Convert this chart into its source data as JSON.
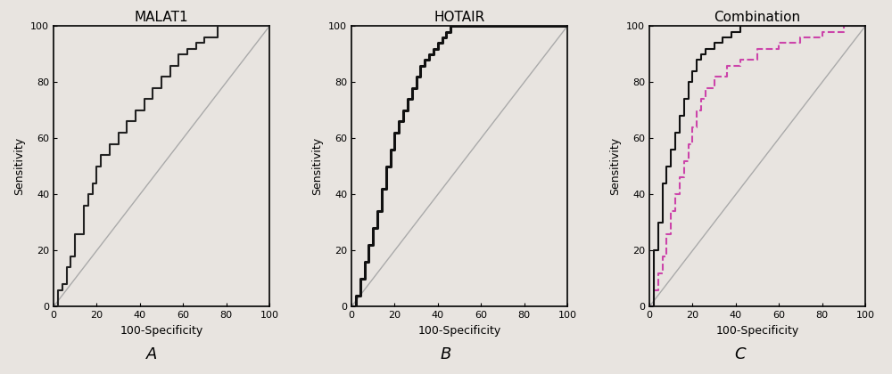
{
  "fig_width": 10.0,
  "fig_height": 4.2,
  "bg_color": "#e8e4e0",
  "panels": [
    {
      "title": "MALAT1",
      "xlabel": "100-Specificity",
      "ylabel": "Sensitivity",
      "xlim": [
        0,
        100
      ],
      "ylim": [
        0,
        100
      ],
      "xticks": [
        0,
        20,
        40,
        60,
        80,
        100
      ],
      "yticks": [
        0,
        20,
        40,
        60,
        80,
        100
      ],
      "label": "A",
      "curves": [
        {
          "x": [
            0,
            2,
            2,
            4,
            4,
            6,
            6,
            8,
            8,
            10,
            10,
            14,
            14,
            16,
            16,
            18,
            18,
            20,
            20,
            22,
            22,
            26,
            26,
            30,
            30,
            34,
            34,
            38,
            38,
            42,
            42,
            46,
            46,
            50,
            50,
            54,
            54,
            58,
            58,
            62,
            62,
            66,
            66,
            70,
            70,
            76,
            76,
            82,
            82,
            100
          ],
          "y": [
            0,
            0,
            6,
            6,
            8,
            8,
            14,
            14,
            18,
            18,
            26,
            26,
            36,
            36,
            40,
            40,
            44,
            44,
            50,
            50,
            54,
            54,
            58,
            58,
            62,
            62,
            66,
            66,
            70,
            70,
            74,
            74,
            78,
            78,
            82,
            82,
            86,
            86,
            90,
            90,
            92,
            92,
            94,
            94,
            96,
            96,
            100,
            100,
            100,
            100
          ],
          "color": "#222222",
          "lw": 1.5,
          "ls": "-",
          "zorder": 3
        },
        {
          "x": [
            0,
            100
          ],
          "y": [
            0,
            100
          ],
          "color": "#aaaaaa",
          "lw": 1.0,
          "ls": "-",
          "zorder": 2
        }
      ]
    },
    {
      "title": "HOTAIR",
      "xlabel": "100-Specificity",
      "ylabel": "Sensitivity",
      "xlim": [
        0,
        100
      ],
      "ylim": [
        0,
        100
      ],
      "xticks": [
        0,
        20,
        40,
        60,
        80,
        100
      ],
      "yticks": [
        0,
        20,
        40,
        60,
        80,
        100
      ],
      "label": "B",
      "curves": [
        {
          "x": [
            0,
            2,
            2,
            4,
            4,
            6,
            6,
            8,
            8,
            10,
            10,
            12,
            12,
            14,
            14,
            16,
            16,
            18,
            18,
            20,
            20,
            22,
            22,
            24,
            24,
            26,
            26,
            28,
            28,
            30,
            30,
            32,
            32,
            34,
            34,
            36,
            36,
            38,
            38,
            40,
            40,
            42,
            42,
            44,
            44,
            46,
            46,
            48,
            48,
            50,
            50,
            60,
            60,
            100
          ],
          "y": [
            0,
            0,
            4,
            4,
            10,
            10,
            16,
            16,
            22,
            22,
            28,
            28,
            34,
            34,
            42,
            42,
            50,
            50,
            56,
            56,
            62,
            62,
            66,
            66,
            70,
            70,
            74,
            74,
            78,
            78,
            82,
            82,
            86,
            86,
            88,
            88,
            90,
            90,
            92,
            92,
            94,
            94,
            96,
            96,
            98,
            98,
            100,
            100,
            100,
            100,
            100,
            100,
            100,
            100
          ],
          "color": "#111111",
          "lw": 2.2,
          "ls": "-",
          "zorder": 3
        },
        {
          "x": [
            0,
            100
          ],
          "y": [
            0,
            100
          ],
          "color": "#aaaaaa",
          "lw": 1.0,
          "ls": "-",
          "zorder": 2
        }
      ]
    },
    {
      "title": "Combination",
      "xlabel": "100-Specificity",
      "ylabel": "Sensitivity",
      "xlim": [
        0,
        100
      ],
      "ylim": [
        0,
        100
      ],
      "xticks": [
        0,
        20,
        40,
        60,
        80,
        100
      ],
      "yticks": [
        0,
        20,
        40,
        60,
        80,
        100
      ],
      "label": "C",
      "curves": [
        {
          "x": [
            0,
            2,
            2,
            4,
            4,
            6,
            6,
            8,
            8,
            10,
            10,
            12,
            12,
            14,
            14,
            16,
            16,
            18,
            18,
            20,
            20,
            22,
            22,
            24,
            24,
            26,
            26,
            30,
            30,
            34,
            34,
            38,
            38,
            42,
            42,
            48,
            48,
            56,
            56,
            66,
            66,
            74,
            74,
            84,
            84,
            100
          ],
          "y": [
            0,
            0,
            20,
            20,
            30,
            30,
            44,
            44,
            50,
            50,
            56,
            56,
            62,
            62,
            68,
            68,
            74,
            74,
            80,
            80,
            84,
            84,
            88,
            88,
            90,
            90,
            92,
            92,
            94,
            94,
            96,
            96,
            98,
            98,
            100,
            100,
            100,
            100,
            100,
            100,
            100,
            100,
            100,
            100,
            100,
            100
          ],
          "color": "#111111",
          "lw": 1.5,
          "ls": "-",
          "zorder": 4
        },
        {
          "x": [
            0,
            2,
            2,
            4,
            4,
            6,
            6,
            8,
            8,
            10,
            10,
            12,
            12,
            14,
            14,
            16,
            16,
            18,
            18,
            20,
            20,
            22,
            22,
            24,
            24,
            26,
            26,
            30,
            30,
            36,
            36,
            42,
            42,
            50,
            50,
            60,
            60,
            70,
            70,
            80,
            80,
            90,
            90,
            100
          ],
          "y": [
            0,
            0,
            6,
            6,
            12,
            12,
            18,
            18,
            26,
            26,
            34,
            34,
            40,
            40,
            46,
            46,
            52,
            52,
            58,
            58,
            64,
            64,
            70,
            70,
            74,
            74,
            78,
            78,
            82,
            82,
            86,
            86,
            88,
            88,
            92,
            92,
            94,
            94,
            96,
            96,
            98,
            98,
            100,
            100
          ],
          "color": "#cc44aa",
          "lw": 1.5,
          "ls": "--",
          "zorder": 3
        },
        {
          "x": [
            0,
            100
          ],
          "y": [
            0,
            100
          ],
          "color": "#aaaaaa",
          "lw": 1.0,
          "ls": "-",
          "zorder": 2
        }
      ]
    }
  ]
}
